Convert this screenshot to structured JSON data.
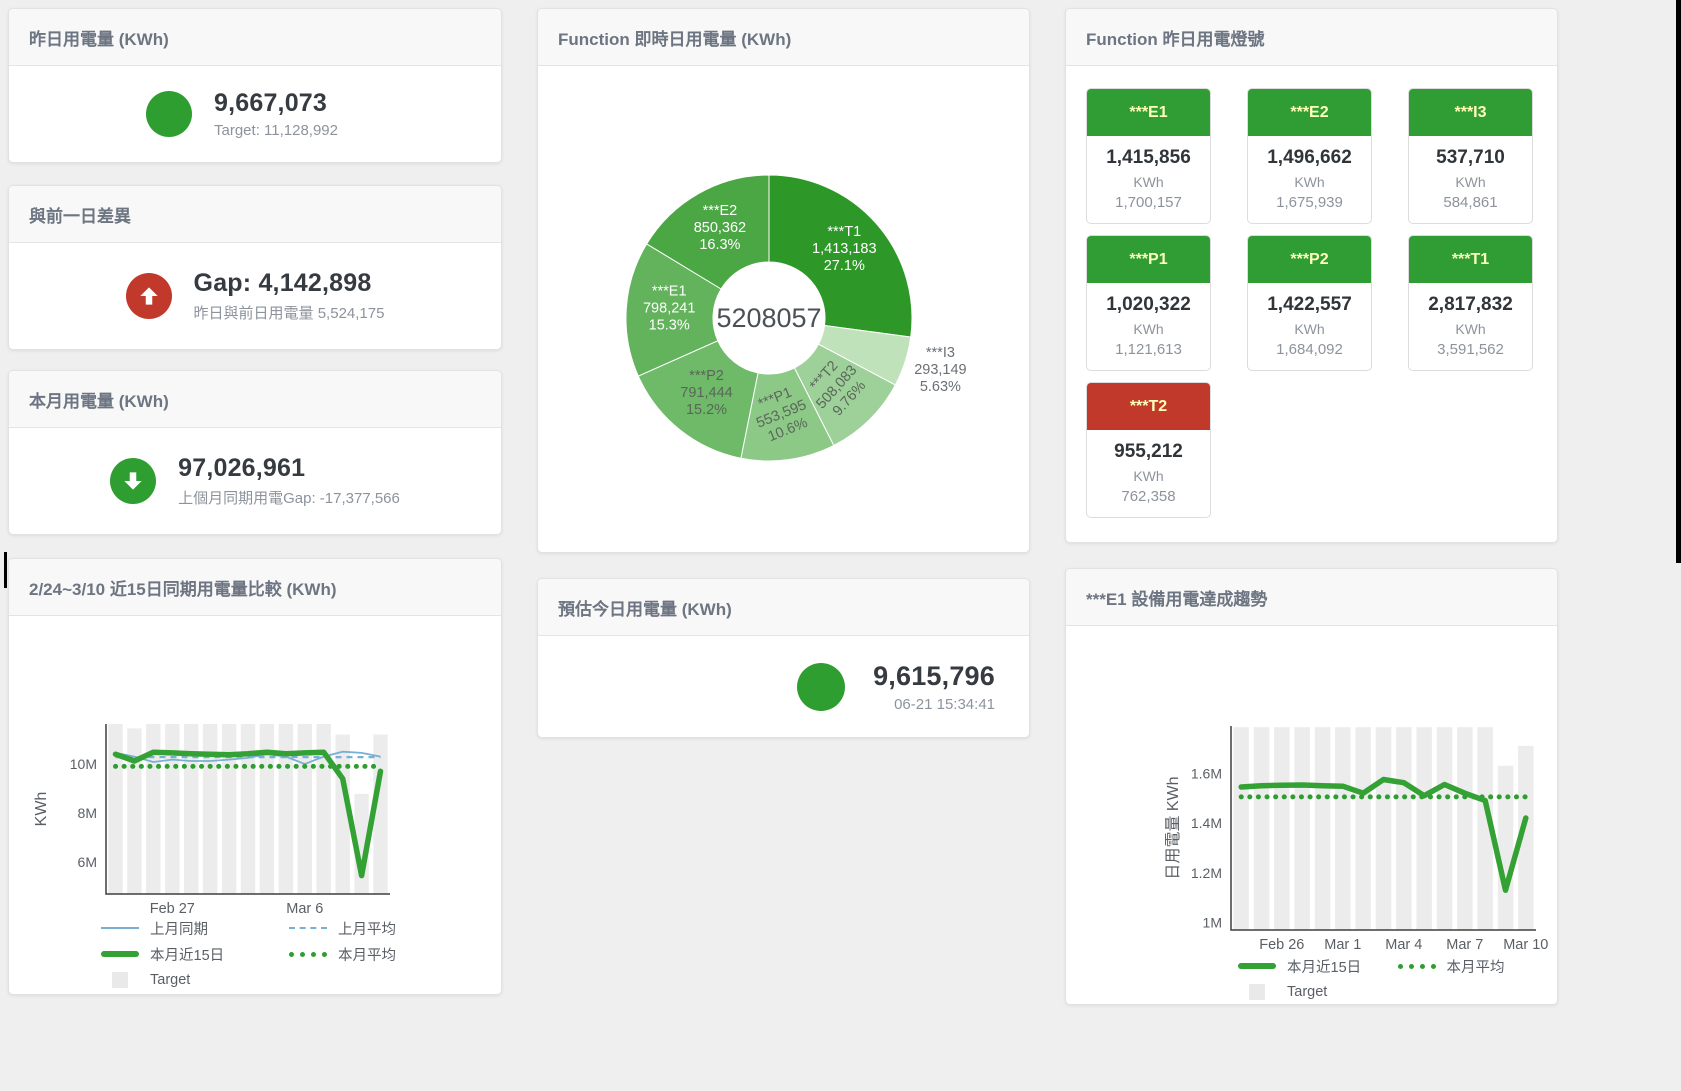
{
  "cards": {
    "yesterday": {
      "title": "昨日用電量 (KWh)",
      "value": "9,667,073",
      "sub": "Target: 11,128,992"
    },
    "gap": {
      "title": "與前一日差異",
      "value": "Gap: 4,142,898",
      "sub": "昨日與前日用電量 5,524,175"
    },
    "month": {
      "title": "本月用電量 (KWh)",
      "value": "97,026,961",
      "sub": "上個月同期用電Gap: -17,377,566"
    },
    "forecast": {
      "title": "預估今日用電量 (KWh)",
      "value": "9,615,796",
      "sub": "06-21 15:34:41"
    }
  },
  "donut_card": {
    "title": "Function 即時日用電量 (KWh)"
  },
  "tiles_card": {
    "title": "Function 昨日用電燈號",
    "unit": "KWh",
    "tiles": [
      {
        "label": "***E1",
        "value": "1,415,856",
        "target": "1,700,157",
        "status": "green"
      },
      {
        "label": "***E2",
        "value": "1,496,662",
        "target": "1,675,939",
        "status": "green"
      },
      {
        "label": "***I3",
        "value": "537,710",
        "target": "584,861",
        "status": "green"
      },
      {
        "label": "***P1",
        "value": "1,020,322",
        "target": "1,121,613",
        "status": "green"
      },
      {
        "label": "***P2",
        "value": "1,422,557",
        "target": "1,684,092",
        "status": "green"
      },
      {
        "label": "***T1",
        "value": "2,817,832",
        "target": "3,591,562",
        "status": "green"
      },
      {
        "label": "***T2",
        "value": "955,212",
        "target": "762,358",
        "status": "red"
      }
    ]
  },
  "left_chart_card": {
    "title": "2/24~3/10 近15日同期用電量比較 (KWh)"
  },
  "right_chart_card": {
    "title": "***E1 設備用電達成趨勢"
  },
  "colors": {
    "green": "#2F9E31",
    "red": "#C0392B",
    "blue_line": "#7AAFD4",
    "green_line": "#33A133",
    "bar_gray": "#ECECEC",
    "tile_green": "#2F9D33",
    "tile_red": "#C0392B"
  },
  "chart_data": [
    {
      "id": "donut",
      "type": "pie",
      "title": "Function 即時日用電量 (KWh)",
      "center_total": "5208057",
      "unit": "KWh",
      "slices": [
        {
          "name": "***T1",
          "value": 1413183,
          "value_label": "1,413,183",
          "pct_label": "27.1%",
          "color": "#2D9828"
        },
        {
          "name": "***I3",
          "value": 293149,
          "value_label": "293,149",
          "pct_label": "5.63%",
          "color": "#BFE2BA"
        },
        {
          "name": "***T2",
          "value": 508083,
          "value_label": "508,083",
          "pct_label": "9.76%",
          "color": "#9DD199"
        },
        {
          "name": "***P1",
          "value": 553595,
          "value_label": "553,595",
          "pct_label": "10.6%",
          "color": "#8CC987"
        },
        {
          "name": "***P2",
          "value": 791444,
          "value_label": "791,444",
          "pct_label": "15.2%",
          "color": "#6FBA68"
        },
        {
          "name": "***E1",
          "value": 798241,
          "value_label": "798,241",
          "pct_label": "15.3%",
          "color": "#63B25C"
        },
        {
          "name": "***E2",
          "value": 850362,
          "value_label": "850,362",
          "pct_label": "16.3%",
          "color": "#4BA644"
        }
      ]
    },
    {
      "id": "compare15",
      "type": "line",
      "title": "2/24~3/10 近15日同期用電量比較 (KWh)",
      "ylabel": "KWh",
      "x_count": 15,
      "xticks": [
        {
          "index": 3,
          "label": "Feb 27"
        },
        {
          "index": 10,
          "label": "Mar 6"
        }
      ],
      "yticks": [
        {
          "value": 6,
          "label": "6M"
        },
        {
          "value": 8,
          "label": "8M"
        },
        {
          "value": 10,
          "label": "10M"
        }
      ],
      "ylim": [
        4.7,
        11.63
      ],
      "unit_scale": "millions KWh",
      "target_bars": [
        11.63,
        11.45,
        11.63,
        11.63,
        11.63,
        11.63,
        11.63,
        11.63,
        11.63,
        11.63,
        11.63,
        11.63,
        11.2,
        8.78,
        11.2
      ],
      "series": [
        {
          "name": "上月同期",
          "style": "blue-solid",
          "values": [
            10.45,
            10.3,
            10.08,
            10.18,
            10.12,
            10.12,
            10.18,
            10.25,
            10.4,
            10.3,
            10.0,
            10.3,
            10.5,
            10.45,
            10.3
          ]
        },
        {
          "name": "上月平均",
          "style": "blue-dashed",
          "constant": 10.28
        },
        {
          "name": "本月平均",
          "style": "green-dotted",
          "constant": 9.9
        },
        {
          "name": "本月近15日",
          "style": "green-thick",
          "values": [
            10.4,
            10.12,
            10.48,
            10.45,
            10.42,
            10.4,
            10.38,
            10.42,
            10.48,
            10.42,
            10.45,
            10.48,
            9.4,
            5.45,
            9.7
          ]
        }
      ],
      "legend": [
        {
          "label": "上月同期",
          "marker": "blue-solid"
        },
        {
          "label": "上月平均",
          "marker": "blue-dashed"
        },
        {
          "label": "本月近15日",
          "marker": "green-thick"
        },
        {
          "label": "本月平均",
          "marker": "green-dotted"
        },
        {
          "label": "Target",
          "marker": "gray-square"
        }
      ],
      "legend_rows": [
        2,
        2,
        1
      ]
    },
    {
      "id": "e1trend",
      "type": "line",
      "title": "***E1 設備用電達成趨勢",
      "ylabel": "日用電量 KWh",
      "x_count": 15,
      "xticks": [
        {
          "index": 2,
          "label": "Feb 26"
        },
        {
          "index": 5,
          "label": "Mar 1"
        },
        {
          "index": 8,
          "label": "Mar 4"
        },
        {
          "index": 11,
          "label": "Mar 7"
        },
        {
          "index": 14,
          "label": "Mar 10"
        }
      ],
      "yticks": [
        {
          "value": 1,
          "label": "1M"
        },
        {
          "value": 1.2,
          "label": "1.2M"
        },
        {
          "value": 1.4,
          "label": "1.4M"
        },
        {
          "value": 1.6,
          "label": "1.6M"
        }
      ],
      "ylim": [
        0.97,
        1.79
      ],
      "unit_scale": "millions KWh",
      "target_bars": [
        1.785,
        1.785,
        1.785,
        1.785,
        1.785,
        1.785,
        1.785,
        1.785,
        1.785,
        1.785,
        1.785,
        1.785,
        1.785,
        1.63,
        1.71
      ],
      "series": [
        {
          "name": "本月平均",
          "style": "green-dotted",
          "constant": 1.505
        },
        {
          "name": "本月近15日",
          "style": "green-thick",
          "values": [
            1.545,
            1.55,
            1.552,
            1.553,
            1.55,
            1.548,
            1.52,
            1.575,
            1.562,
            1.51,
            1.555,
            1.52,
            1.49,
            1.13,
            1.42
          ]
        }
      ],
      "legend": [
        {
          "label": "本月近15日",
          "marker": "green-thick"
        },
        {
          "label": "本月平均",
          "marker": "green-dotted"
        },
        {
          "label": "Target",
          "marker": "gray-square"
        }
      ],
      "legend_rows": [
        2,
        1
      ]
    }
  ]
}
